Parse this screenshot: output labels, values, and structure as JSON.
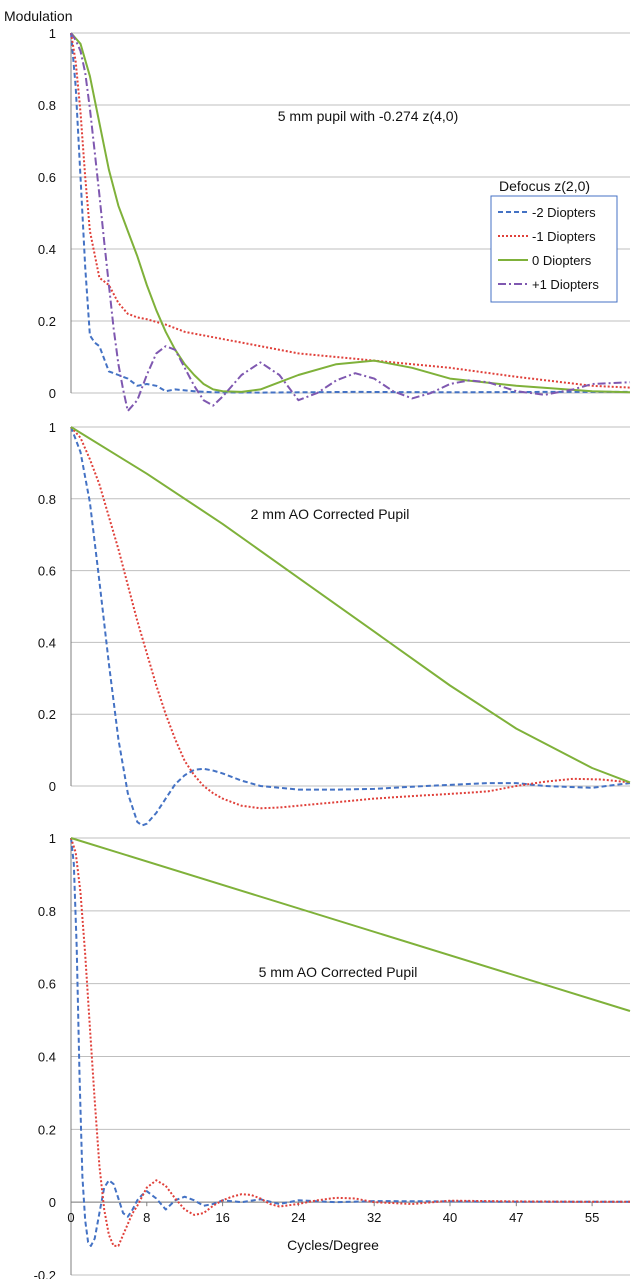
{
  "y_title": "Modulation",
  "x_title": "Cycles/Degree",
  "x_tick_labels": [
    "0",
    "8",
    "16",
    "24",
    "32",
    "40",
    "47",
    "55"
  ],
  "legend_title": "Defocus z(2,0)",
  "colors": {
    "minus2": "#4472c4",
    "minus1": "#e0403a",
    "zero": "#7fb13a",
    "plus1": "#7f58b0",
    "grid": "#bfbfbf"
  },
  "chart_data": [
    {
      "type": "line",
      "title": "5 mm pupil with -0.274 z(4,0)",
      "xlabel": "Cycles/Degree",
      "ylabel": "Modulation",
      "xlim": [
        0,
        59
      ],
      "ylim": [
        0,
        1
      ],
      "y_ticks": [
        "1",
        "0.8",
        "0.6",
        "0.4",
        "0.2",
        "0"
      ],
      "grid": true,
      "legend": {
        "title": "Defocus z(2,0)",
        "position": "right",
        "entries": [
          "-2 Diopters",
          "-1 Diopters",
          "0 Diopters",
          "+1 Diopters"
        ]
      },
      "series": [
        {
          "name": "-2 Diopters",
          "key": "minus2",
          "x": [
            0,
            0.5,
            1,
            1.5,
            2,
            2.5,
            3,
            4,
            5,
            6,
            7,
            8,
            9,
            10,
            11,
            13,
            15,
            20,
            30,
            40,
            50,
            59
          ],
          "y": [
            1,
            0.85,
            0.6,
            0.35,
            0.16,
            0.14,
            0.13,
            0.06,
            0.05,
            0.04,
            0.02,
            0.025,
            0.02,
            0.005,
            0.01,
            0.005,
            0.002,
            0.001,
            0.003,
            0.002,
            0.003,
            0.003
          ]
        },
        {
          "name": "-1 Diopters",
          "key": "minus1",
          "x": [
            0,
            0.5,
            1,
            1.5,
            2,
            3,
            4,
            5,
            6,
            7,
            8,
            10,
            12,
            14,
            16,
            20,
            24,
            32,
            40,
            47,
            55,
            59
          ],
          "y": [
            1,
            0.92,
            0.78,
            0.6,
            0.45,
            0.32,
            0.3,
            0.25,
            0.22,
            0.21,
            0.205,
            0.19,
            0.17,
            0.16,
            0.15,
            0.13,
            0.11,
            0.09,
            0.07,
            0.045,
            0.02,
            0.015
          ]
        },
        {
          "name": "0 Diopters",
          "key": "zero",
          "x": [
            0,
            1,
            2,
            3,
            4,
            5,
            6,
            7,
            8,
            9,
            10,
            11,
            12,
            13,
            14,
            15,
            16,
            18,
            20,
            24,
            28,
            32,
            36,
            40,
            47,
            55,
            59
          ],
          "y": [
            1,
            0.97,
            0.88,
            0.75,
            0.62,
            0.52,
            0.45,
            0.38,
            0.3,
            0.23,
            0.17,
            0.12,
            0.08,
            0.05,
            0.025,
            0.01,
            0.005,
            0.003,
            0.01,
            0.05,
            0.08,
            0.09,
            0.07,
            0.04,
            0.02,
            0.005,
            0.002
          ]
        },
        {
          "name": "+1 Diopters",
          "key": "plus1",
          "x": [
            0,
            0.5,
            1,
            1.5,
            2,
            2.5,
            3,
            3.5,
            4,
            4.5,
            5,
            5.5,
            6,
            7,
            8,
            9,
            10,
            11,
            12,
            13,
            14,
            15,
            16,
            18,
            20,
            22,
            24,
            26,
            28,
            30,
            32,
            34,
            36,
            38,
            40,
            42,
            44,
            47,
            50,
            53,
            55,
            59
          ],
          "y": [
            1,
            0.98,
            0.95,
            0.89,
            0.79,
            0.67,
            0.55,
            0.42,
            0.3,
            0.18,
            0.08,
            0.01,
            -0.05,
            -0.02,
            0.05,
            0.11,
            0.13,
            0.12,
            0.07,
            0.02,
            -0.02,
            -0.035,
            -0.01,
            0.05,
            0.085,
            0.05,
            -0.02,
            0.0,
            0.035,
            0.055,
            0.04,
            0.005,
            -0.015,
            0.0,
            0.025,
            0.035,
            0.03,
            0.005,
            -0.005,
            0.01,
            0.025,
            0.03
          ]
        }
      ]
    },
    {
      "type": "line",
      "title": "2 mm AO Corrected Pupil",
      "xlim": [
        0,
        59
      ],
      "ylim": [
        0,
        1
      ],
      "y_ticks": [
        "1",
        "0.8",
        "0.6",
        "0.4",
        "0.2",
        "0"
      ],
      "grid": true,
      "series": [
        {
          "key": "minus2",
          "x": [
            0,
            1,
            2,
            3,
            4,
            5,
            6,
            7,
            7.5,
            8,
            9,
            10,
            11,
            12,
            13,
            14,
            15,
            16,
            18,
            20,
            24,
            28,
            32,
            36,
            40,
            44,
            47,
            50,
            55,
            59
          ],
          "y": [
            1,
            0.93,
            0.79,
            0.57,
            0.34,
            0.13,
            -0.02,
            -0.1,
            -0.11,
            -0.105,
            -0.075,
            -0.035,
            0.005,
            0.03,
            0.045,
            0.048,
            0.043,
            0.035,
            0.015,
            0.0,
            -0.01,
            -0.01,
            -0.008,
            -0.002,
            0.003,
            0.008,
            0.008,
            0.0,
            -0.005,
            0.008
          ]
        },
        {
          "key": "minus1",
          "x": [
            0,
            1,
            2,
            3,
            4,
            5,
            6,
            7,
            8,
            9,
            10,
            11,
            12,
            13,
            14,
            15,
            16,
            17,
            18,
            20,
            22,
            24,
            28,
            32,
            36,
            40,
            44,
            47,
            50,
            53,
            56,
            59
          ],
          "y": [
            1,
            0.97,
            0.91,
            0.84,
            0.75,
            0.66,
            0.56,
            0.46,
            0.37,
            0.28,
            0.2,
            0.13,
            0.07,
            0.03,
            0.0,
            -0.02,
            -0.035,
            -0.045,
            -0.055,
            -0.062,
            -0.06,
            -0.055,
            -0.045,
            -0.035,
            -0.028,
            -0.022,
            -0.015,
            0.0,
            0.012,
            0.02,
            0.018,
            0.01
          ]
        },
        {
          "key": "zero",
          "x": [
            0,
            8,
            16,
            24,
            32,
            40,
            47,
            55,
            59
          ],
          "y": [
            1,
            0.87,
            0.73,
            0.58,
            0.43,
            0.28,
            0.16,
            0.05,
            0.01
          ]
        }
      ]
    },
    {
      "type": "line",
      "title": "5 mm AO Corrected Pupil",
      "xlabel": "Cycles/Degree",
      "xlim": [
        0,
        59
      ],
      "ylim": [
        -0.2,
        1
      ],
      "y_ticks": [
        "1",
        "0.8",
        "0.6",
        "0.4",
        "0.2",
        "0",
        "-0.2"
      ],
      "x_ticks": [
        "0",
        "8",
        "16",
        "24",
        "32",
        "40",
        "47",
        "55"
      ],
      "grid": true,
      "series": [
        {
          "key": "minus2",
          "x": [
            0,
            0.3,
            0.6,
            0.9,
            1.2,
            1.5,
            1.8,
            2.1,
            2.5,
            3,
            3.5,
            4,
            4.5,
            5,
            5.5,
            6,
            6.5,
            7,
            7.5,
            8,
            9,
            10,
            11,
            12,
            13,
            14,
            15,
            16,
            18,
            20,
            22,
            24,
            28,
            32,
            40,
            47,
            55,
            59
          ],
          "y": [
            1,
            0.93,
            0.7,
            0.35,
            0.07,
            -0.05,
            -0.11,
            -0.12,
            -0.1,
            -0.03,
            0.04,
            0.06,
            0.05,
            0.01,
            -0.03,
            -0.04,
            -0.02,
            0.005,
            0.02,
            0.03,
            0.01,
            -0.02,
            0.005,
            0.015,
            0.005,
            -0.01,
            -0.005,
            0.005,
            0.0,
            0.008,
            -0.005,
            0.005,
            0.0,
            0.003,
            0.002,
            0.001,
            0.001,
            0.001
          ]
        },
        {
          "key": "minus1",
          "x": [
            0,
            0.5,
            1,
            1.5,
            2,
            2.5,
            3,
            3.5,
            4,
            4.5,
            5,
            5.5,
            6,
            6.5,
            7,
            8,
            9,
            10,
            11,
            12,
            13,
            14,
            15,
            16,
            17,
            18,
            19,
            20,
            21,
            22,
            24,
            26,
            28,
            30,
            32,
            36,
            40,
            47,
            55,
            59
          ],
          "y": [
            1,
            0.96,
            0.85,
            0.68,
            0.48,
            0.28,
            0.1,
            -0.02,
            -0.09,
            -0.12,
            -0.12,
            -0.09,
            -0.06,
            -0.03,
            -0.01,
            0.04,
            0.06,
            0.045,
            0.01,
            -0.02,
            -0.035,
            -0.03,
            -0.01,
            0.005,
            0.015,
            0.022,
            0.02,
            0.01,
            -0.005,
            -0.012,
            -0.005,
            0.005,
            0.012,
            0.01,
            0.0,
            -0.005,
            0.004,
            0.002,
            0.001,
            0.001
          ]
        },
        {
          "key": "zero",
          "x": [
            0,
            59
          ],
          "y": [
            1,
            0.525
          ]
        }
      ]
    }
  ]
}
